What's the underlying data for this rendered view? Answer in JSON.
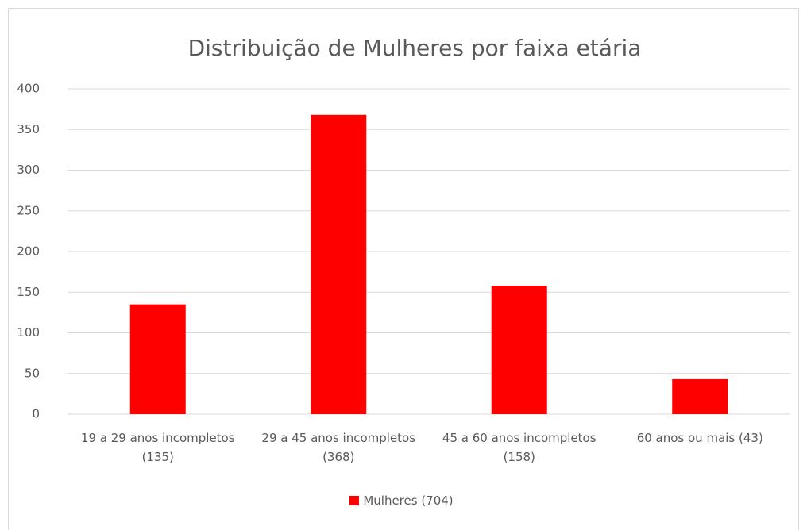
{
  "chart_data": {
    "type": "bar",
    "title": "Distribuição de Mulheres por faixa etária",
    "categories": [
      "19 a 29 anos incompletos (135)",
      "29 a 45 anos incompletos (368)",
      "45 a 60 anos incompletos (158)",
      "60 anos ou mais (43)"
    ],
    "series": [
      {
        "name": "Mulheres (704)",
        "color": "#ff0000",
        "values": [
          135,
          368,
          158,
          43
        ]
      }
    ],
    "ylim": [
      0,
      400
    ],
    "yticks": [
      0,
      50,
      100,
      150,
      200,
      250,
      300,
      350,
      400
    ],
    "grid": true,
    "legend": "bottom"
  }
}
